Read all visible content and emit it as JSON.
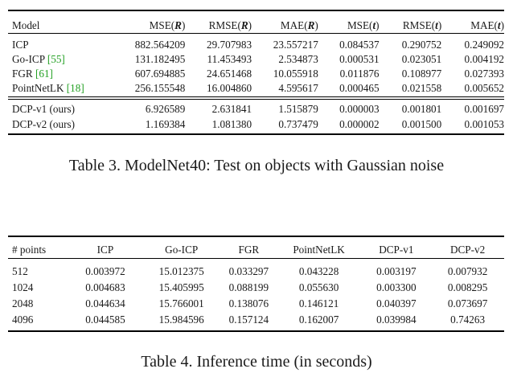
{
  "table3": {
    "headers": {
      "model": "Model",
      "mse_r_pre": "MSE(",
      "mse_r_sym": "R",
      "mse_r_post": ")",
      "rmse_r_pre": "RMSE(",
      "rmse_r_sym": "R",
      "rmse_r_post": ")",
      "mae_r_pre": "MAE(",
      "mae_r_sym": "R",
      "mae_r_post": ")",
      "mse_t_pre": "MSE(",
      "mse_t_sym": "t",
      "mse_t_post": ")",
      "rmse_t_pre": "RMSE(",
      "rmse_t_sym": "t",
      "rmse_t_post": ")",
      "mae_t_pre": "MAE(",
      "mae_t_sym": "t",
      "mae_t_post": ")"
    },
    "rows": [
      {
        "name": "ICP",
        "cite": "",
        "values": [
          "882.564209",
          "29.707983",
          "23.557217",
          "0.084537",
          "0.290752",
          "0.249092"
        ]
      },
      {
        "name": "Go-ICP ",
        "cite": "[55]",
        "values": [
          "131.182495",
          "11.453493",
          "2.534873",
          "0.000531",
          "0.023051",
          "0.004192"
        ]
      },
      {
        "name": "FGR ",
        "cite": "[61]",
        "values": [
          "607.694885",
          "24.651468",
          "10.055918",
          "0.011876",
          "0.108977",
          "0.027393"
        ]
      },
      {
        "name": "PointNetLK ",
        "cite": "[18]",
        "values": [
          "256.155548",
          "16.004860",
          "4.595617",
          "0.000465",
          "0.021558",
          "0.005652"
        ]
      },
      {
        "name": "DCP-v1 (ours)",
        "cite": "",
        "values": [
          "6.926589",
          "2.631841",
          "1.515879",
          "0.000003",
          "0.001801",
          "0.001697"
        ]
      },
      {
        "name": "DCP-v2 (ours)",
        "cite": "",
        "values": [
          "1.169384",
          "1.081380",
          "0.737479",
          "0.000002",
          "0.001500",
          "0.001053"
        ]
      }
    ],
    "caption": "Table 3. ModelNet40: Test on objects with Gaussian noise"
  },
  "table4": {
    "headers": [
      "# points",
      "ICP",
      "Go-ICP",
      "FGR",
      "PointNetLK",
      "DCP-v1",
      "DCP-v2"
    ],
    "rows": [
      [
        "512",
        "0.003972",
        "15.012375",
        "0.033297",
        "0.043228",
        "0.003197",
        "0.007932"
      ],
      [
        "1024",
        "0.004683",
        "15.405995",
        "0.088199",
        "0.055630",
        "0.003300",
        "0.008295"
      ],
      [
        "2048",
        "0.044634",
        "15.766001",
        "0.138076",
        "0.146121",
        "0.040397",
        "0.073697"
      ],
      [
        "4096",
        "0.044585",
        "15.984596",
        "0.157124",
        "0.162007",
        "0.039984",
        "0.74263"
      ]
    ],
    "caption": "Table 4. Inference time (in seconds)"
  }
}
